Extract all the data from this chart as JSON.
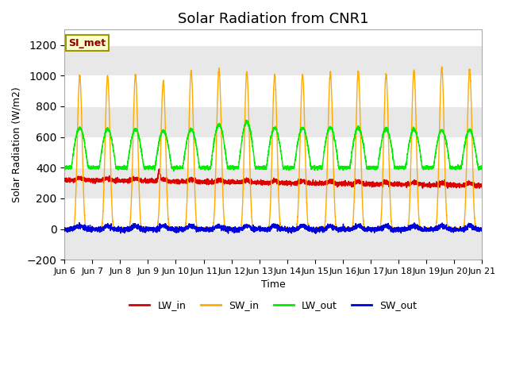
{
  "title": "Solar Radiation from CNR1",
  "ylabel": "Solar Radiation (W/m2)",
  "xlabel": "Time",
  "annotation": "SI_met",
  "ylim": [
    -200,
    1300
  ],
  "yticks": [
    -200,
    0,
    200,
    400,
    600,
    800,
    1000,
    1200
  ],
  "num_days": 15,
  "points_per_day": 288,
  "colors": {
    "LW_in": "#dd0000",
    "SW_in": "#ffaa00",
    "LW_out": "#00ee00",
    "SW_out": "#0000dd"
  },
  "fig_bg_color": "#ffffff",
  "plot_bg_color": "#ffffff",
  "band_color": "#e8e8e8",
  "title_fontsize": 13,
  "legend_fontsize": 9,
  "tick_labelsize": 8,
  "day_labels": [
    "Jun 6",
    "Jun 7",
    "Jun 8",
    "Jun 9",
    "Jun 10",
    "Jun 11",
    "Jun 12",
    "Jun 13",
    "Jun 14",
    "Jun 15",
    "Jun 16",
    "Jun 17",
    "Jun 18",
    "Jun 19",
    "Jun 20",
    "Jun 21"
  ]
}
